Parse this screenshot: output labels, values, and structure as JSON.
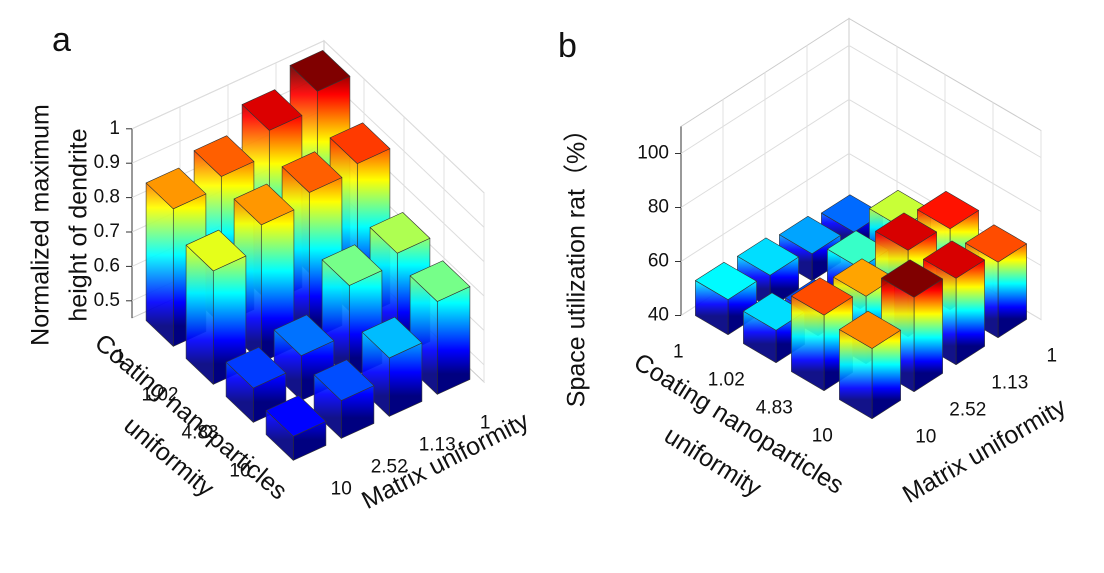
{
  "chart_data": [
    {
      "type": "bar3d",
      "panel_label": "a",
      "zlabel": [
        "Normalized maximum",
        "height of dendrite"
      ],
      "xlabel": [
        "Coating nanoparticles",
        "uniformity"
      ],
      "ylabel": "Matrix uniformity",
      "x_categories": [
        "1",
        "1.02",
        "4.83",
        "10"
      ],
      "y_categories": [
        "1",
        "1.13",
        "2.52",
        "10"
      ],
      "values": [
        [
          1.0,
          0.95,
          0.88,
          0.85
        ],
        [
          0.9,
          0.88,
          0.85,
          0.78
        ],
        [
          0.75,
          0.72,
          0.58,
          0.55
        ],
        [
          0.72,
          0.62,
          0.56,
          0.52
        ]
      ],
      "zlim": [
        0.45,
        1.0
      ],
      "zticks": [
        0.5,
        0.6,
        0.7,
        0.8,
        0.9,
        1
      ],
      "colormap": "jet",
      "grid": true
    },
    {
      "type": "bar3d",
      "panel_label": "b",
      "zlabel": [
        "Space utilization rat（%）"
      ],
      "xlabel": [
        "Coating nanoparticles",
        "uniformity"
      ],
      "ylabel": "Matrix uniformity",
      "x_categories": [
        "1",
        "1.02",
        "4.83",
        "10"
      ],
      "y_categories": [
        "1",
        "1.13",
        "2.52",
        "10"
      ],
      "values": [
        [
          48,
          50,
          52,
          53
        ],
        [
          60,
          55,
          47,
          52
        ],
        [
          70,
          72,
          65,
          68
        ],
        [
          68,
          72,
          75,
          66
        ]
      ],
      "zlim": [
        40,
        110
      ],
      "zticks": [
        40,
        60,
        80,
        100
      ],
      "colormap": "jet",
      "grid": true
    }
  ]
}
